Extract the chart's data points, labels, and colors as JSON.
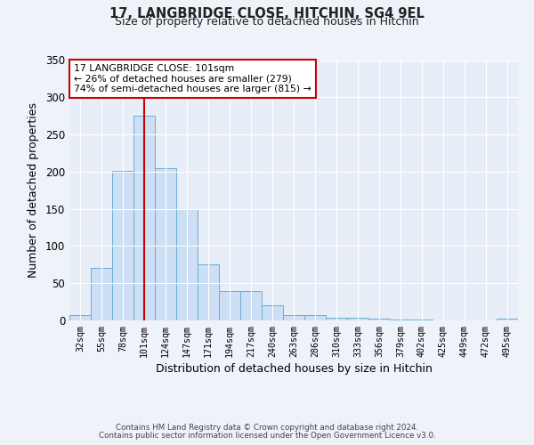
{
  "title": "17, LANGBRIDGE CLOSE, HITCHIN, SG4 9EL",
  "subtitle": "Size of property relative to detached houses in Hitchin",
  "xlabel": "Distribution of detached houses by size in Hitchin",
  "ylabel": "Number of detached properties",
  "bar_labels": [
    "32sqm",
    "55sqm",
    "78sqm",
    "101sqm",
    "124sqm",
    "147sqm",
    "171sqm",
    "194sqm",
    "217sqm",
    "240sqm",
    "263sqm",
    "286sqm",
    "310sqm",
    "333sqm",
    "356sqm",
    "379sqm",
    "402sqm",
    "425sqm",
    "449sqm",
    "472sqm",
    "495sqm"
  ],
  "bar_values": [
    7,
    71,
    201,
    275,
    205,
    149,
    75,
    40,
    40,
    20,
    7,
    7,
    4,
    3,
    2,
    1,
    1,
    0,
    0,
    0,
    2
  ],
  "bar_color": "#ccdff4",
  "bar_edge_color": "#6aaed6",
  "vline_x": 3,
  "vline_color": "#cc0000",
  "ylim": [
    0,
    350
  ],
  "yticks": [
    0,
    50,
    100,
    150,
    200,
    250,
    300,
    350
  ],
  "annotation_title": "17 LANGBRIDGE CLOSE: 101sqm",
  "annotation_line1": "← 26% of detached houses are smaller (279)",
  "annotation_line2": "74% of semi-detached houses are larger (815) →",
  "annotation_box_edge": "#cc0000",
  "footer_line1": "Contains HM Land Registry data © Crown copyright and database right 2024.",
  "footer_line2": "Contains public sector information licensed under the Open Government Licence v3.0.",
  "background_color": "#eef2f9",
  "plot_bg_color": "#e8eef8"
}
